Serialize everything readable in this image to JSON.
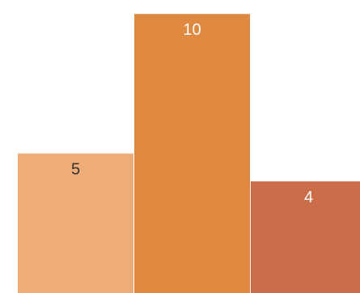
{
  "chart_data": {
    "type": "bar",
    "title": "",
    "xlabel": "",
    "ylabel": "",
    "categories": [
      "",
      "",
      ""
    ],
    "values": [
      5,
      10,
      4
    ],
    "data_labels": [
      "5",
      "10",
      "4"
    ],
    "ylim": [
      0,
      10.5
    ],
    "grid": false,
    "legend": "none",
    "colors": [
      "#F0AC78",
      "#DF8840",
      "#CB6D48"
    ],
    "label_colors": [
      "#333333",
      "#ffffff",
      "#ffffff"
    ]
  }
}
